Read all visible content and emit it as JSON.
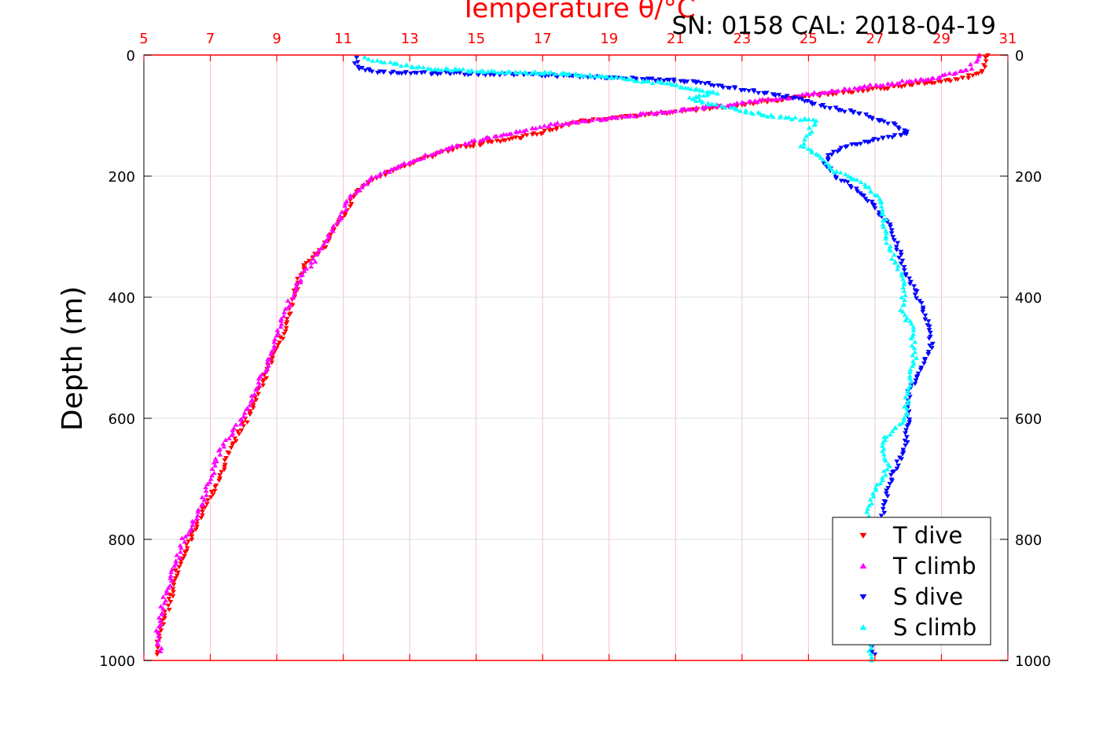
{
  "chart_data": {
    "type": "scatter",
    "top_title": "Temperature θ/°C",
    "annotation": "SN: 0158  CAL: 2018-04-19",
    "ylabel": "Depth (m)",
    "xlim": [
      5,
      31
    ],
    "ylim": [
      0,
      1000
    ],
    "y_reversed": true,
    "x_ticks": [
      5,
      7,
      9,
      11,
      13,
      15,
      17,
      19,
      21,
      23,
      25,
      27,
      29,
      31
    ],
    "y_ticks": [
      0,
      200,
      400,
      600,
      800,
      1000
    ],
    "grid": true,
    "legend_position": "bottom-right",
    "colors": {
      "t_dive": "#ff0000",
      "t_climb": "#ff00ff",
      "s_dive": "#0000ff",
      "s_climb": "#00ffff",
      "top_axis": "#ff0000",
      "grid": "#dddddd"
    },
    "series": [
      {
        "name": "T dive",
        "marker": "triangle-down",
        "color": "#ff0000",
        "points": [
          [
            30.4,
            0
          ],
          [
            30.3,
            20
          ],
          [
            30.2,
            30
          ],
          [
            29.5,
            40
          ],
          [
            28.0,
            50
          ],
          [
            26.0,
            62
          ],
          [
            24.0,
            75
          ],
          [
            22.0,
            88
          ],
          [
            20.0,
            100
          ],
          [
            18.0,
            110
          ],
          [
            17.2,
            125
          ],
          [
            16.0,
            140
          ],
          [
            14.5,
            152
          ],
          [
            13.5,
            170
          ],
          [
            12.5,
            190
          ],
          [
            11.8,
            210
          ],
          [
            11.3,
            230
          ],
          [
            11.1,
            260
          ],
          [
            10.7,
            290
          ],
          [
            10.4,
            320
          ],
          [
            9.8,
            350
          ],
          [
            9.6,
            380
          ],
          [
            9.4,
            420
          ],
          [
            9.2,
            460
          ],
          [
            8.9,
            500
          ],
          [
            8.5,
            550
          ],
          [
            8.1,
            600
          ],
          [
            7.6,
            650
          ],
          [
            7.3,
            700
          ],
          [
            6.8,
            750
          ],
          [
            6.4,
            800
          ],
          [
            6.0,
            850
          ],
          [
            5.8,
            900
          ],
          [
            5.5,
            950
          ],
          [
            5.4,
            990
          ]
        ]
      },
      {
        "name": "T climb",
        "marker": "triangle-up",
        "color": "#ff00ff",
        "points": [
          [
            30.2,
            0
          ],
          [
            29.8,
            25
          ],
          [
            28.8,
            38
          ],
          [
            27.0,
            50
          ],
          [
            25.0,
            65
          ],
          [
            23.0,
            80
          ],
          [
            21.0,
            92
          ],
          [
            19.0,
            104
          ],
          [
            17.3,
            115
          ],
          [
            16.0,
            130
          ],
          [
            14.7,
            145
          ],
          [
            13.6,
            165
          ],
          [
            12.6,
            185
          ],
          [
            11.8,
            205
          ],
          [
            11.2,
            235
          ],
          [
            10.9,
            270
          ],
          [
            10.5,
            305
          ],
          [
            10.1,
            340
          ],
          [
            9.7,
            370
          ],
          [
            9.2,
            430
          ],
          [
            8.8,
            500
          ],
          [
            8.4,
            550
          ],
          [
            8.0,
            600
          ],
          [
            7.3,
            650
          ],
          [
            7.0,
            700
          ],
          [
            6.6,
            760
          ],
          [
            6.2,
            800
          ],
          [
            5.9,
            850
          ],
          [
            5.6,
            900
          ],
          [
            5.4,
            950
          ],
          [
            5.5,
            985
          ]
        ]
      },
      {
        "name": "S dive",
        "marker": "triangle-down",
        "color": "#0000ff",
        "points": [
          [
            11.4,
            5
          ],
          [
            11.4,
            20
          ],
          [
            12.0,
            28
          ],
          [
            13.6,
            30
          ],
          [
            16.4,
            32
          ],
          [
            17.4,
            34
          ],
          [
            21.0,
            42
          ],
          [
            21.8,
            46
          ],
          [
            23.6,
            62
          ],
          [
            24.5,
            70
          ],
          [
            25.5,
            85
          ],
          [
            26.4,
            95
          ],
          [
            27.6,
            115
          ],
          [
            28.0,
            130
          ],
          [
            27.0,
            140
          ],
          [
            26.2,
            150
          ],
          [
            25.6,
            165
          ],
          [
            25.5,
            180
          ],
          [
            25.8,
            200
          ],
          [
            26.4,
            220
          ],
          [
            27.0,
            250
          ],
          [
            27.4,
            280
          ],
          [
            27.7,
            320
          ],
          [
            27.9,
            360
          ],
          [
            28.3,
            400
          ],
          [
            28.6,
            440
          ],
          [
            28.7,
            480
          ],
          [
            28.4,
            520
          ],
          [
            28.0,
            560
          ],
          [
            28.0,
            600
          ],
          [
            27.9,
            650
          ],
          [
            27.5,
            700
          ],
          [
            27.2,
            760
          ],
          [
            27.0,
            800
          ],
          [
            26.9,
            850
          ],
          [
            26.8,
            900
          ],
          [
            26.7,
            950
          ],
          [
            27.0,
            990
          ]
        ]
      },
      {
        "name": "S climb",
        "marker": "triangle-up",
        "color": "#00ffff",
        "points": [
          [
            11.7,
            5
          ],
          [
            12.2,
            12
          ],
          [
            13.4,
            22
          ],
          [
            14.8,
            26
          ],
          [
            17.4,
            30
          ],
          [
            18.5,
            34
          ],
          [
            19.6,
            40
          ],
          [
            20.8,
            48
          ],
          [
            21.5,
            55
          ],
          [
            22.2,
            62
          ],
          [
            21.4,
            72
          ],
          [
            22.8,
            90
          ],
          [
            23.8,
            100
          ],
          [
            25.2,
            108
          ],
          [
            25.0,
            130
          ],
          [
            24.8,
            150
          ],
          [
            25.4,
            170
          ],
          [
            25.7,
            190
          ],
          [
            26.6,
            210
          ],
          [
            27.2,
            240
          ],
          [
            27.3,
            270
          ],
          [
            27.3,
            300
          ],
          [
            27.6,
            340
          ],
          [
            27.9,
            380
          ],
          [
            27.8,
            420
          ],
          [
            28.1,
            450
          ],
          [
            28.2,
            500
          ],
          [
            28.0,
            550
          ],
          [
            27.9,
            600
          ],
          [
            27.2,
            640
          ],
          [
            27.4,
            680
          ],
          [
            27.0,
            720
          ],
          [
            26.8,
            750
          ],
          [
            26.7,
            800
          ],
          [
            26.8,
            850
          ],
          [
            26.8,
            900
          ],
          [
            26.8,
            950
          ],
          [
            26.9,
            1000
          ]
        ]
      }
    ]
  }
}
